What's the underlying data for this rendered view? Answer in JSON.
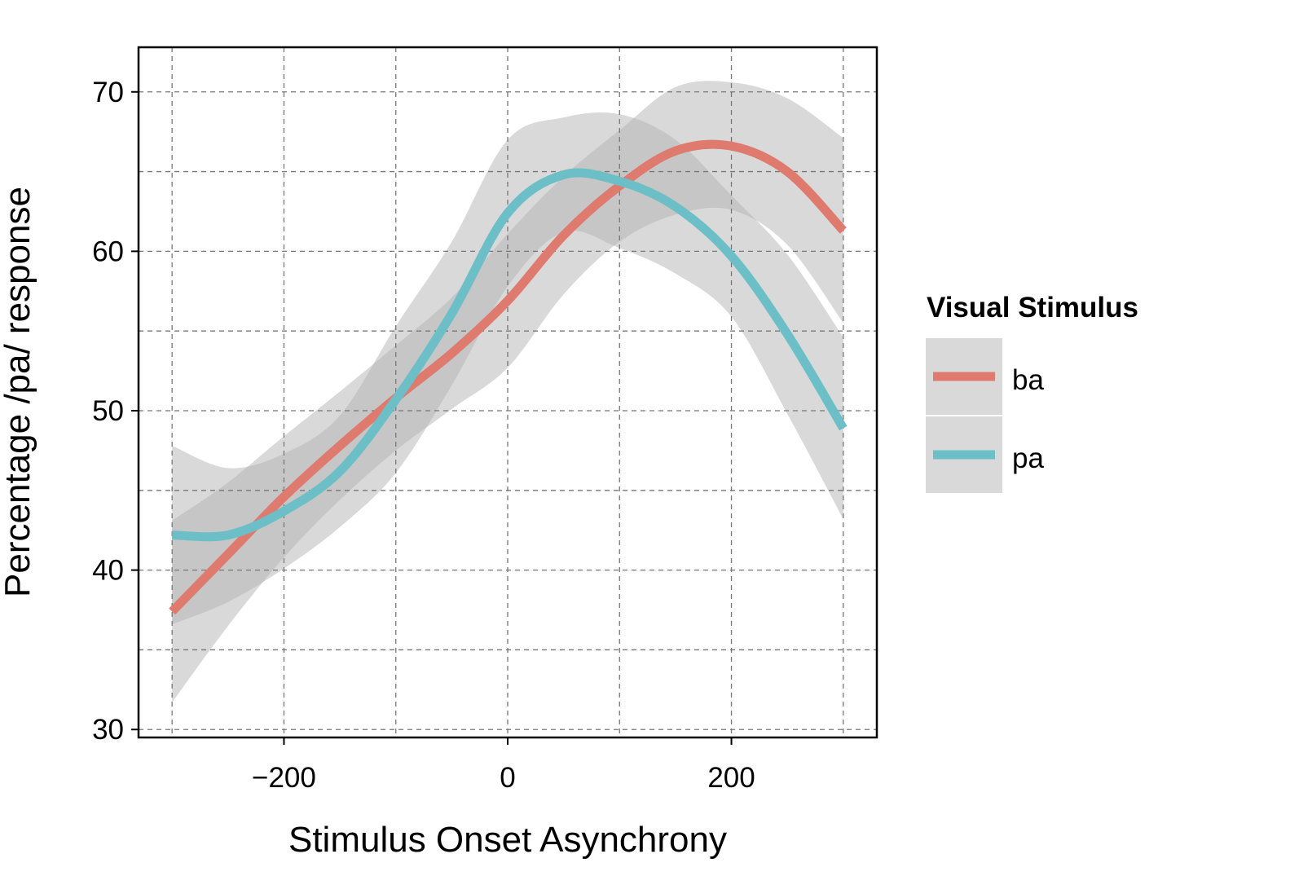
{
  "chart_data": {
    "type": "line",
    "title": "",
    "xlabel": "Stimulus Onset Asynchrony",
    "ylabel": "Percentage /pa/ response",
    "xlim": [
      -330,
      330
    ],
    "ylim": [
      29.5,
      72.8
    ],
    "xticks": [
      -200,
      0,
      200
    ],
    "xtick_labels": [
      "−200",
      "0",
      "200"
    ],
    "yticks": [
      30,
      40,
      50,
      60,
      70
    ],
    "ytick_labels": [
      "30",
      "40",
      "50",
      "60",
      "70"
    ],
    "grid": true,
    "grid_style": "dashed",
    "x_minor_grid": [
      -300,
      -100,
      100,
      300
    ],
    "y_minor_grid": [
      35,
      45,
      55,
      65
    ],
    "legend": {
      "title": "Visual Stimulus",
      "placement": "right"
    },
    "x": [
      -300,
      -250,
      -200,
      -150,
      -100,
      -50,
      0,
      50,
      100,
      150,
      200,
      250,
      300
    ],
    "series": [
      {
        "name": "ba",
        "color": "#df7a6f",
        "values": [
          37.4,
          41.0,
          44.6,
          47.8,
          50.8,
          53.6,
          56.9,
          61.0,
          64.1,
          66.3,
          66.6,
          65.0,
          61.3
        ],
        "ci_upper": [
          43.1,
          45.5,
          48.4,
          51.2,
          54.1,
          57.1,
          61.1,
          64.7,
          67.6,
          70.3,
          70.6,
          69.6,
          67.1
        ],
        "ci_lower": [
          31.7,
          36.5,
          40.8,
          44.4,
          47.5,
          50.1,
          52.7,
          57.3,
          60.6,
          62.3,
          62.6,
          60.4,
          55.5
        ]
      },
      {
        "name": "pa",
        "color": "#6cbfc6",
        "values": [
          42.2,
          42.2,
          43.7,
          46.2,
          50.7,
          56.1,
          62.4,
          64.8,
          64.4,
          62.8,
          59.7,
          54.8,
          48.9
        ],
        "ci_upper": [
          47.8,
          46.4,
          47.3,
          49.7,
          55.3,
          60.6,
          67.0,
          68.4,
          68.6,
          67.0,
          63.5,
          59.8,
          54.6
        ],
        "ci_lower": [
          36.6,
          38.0,
          40.1,
          42.7,
          46.1,
          51.6,
          57.8,
          61.2,
          60.2,
          58.6,
          55.9,
          49.8,
          43.2
        ]
      }
    ],
    "band_color": "#b3b3b3"
  }
}
